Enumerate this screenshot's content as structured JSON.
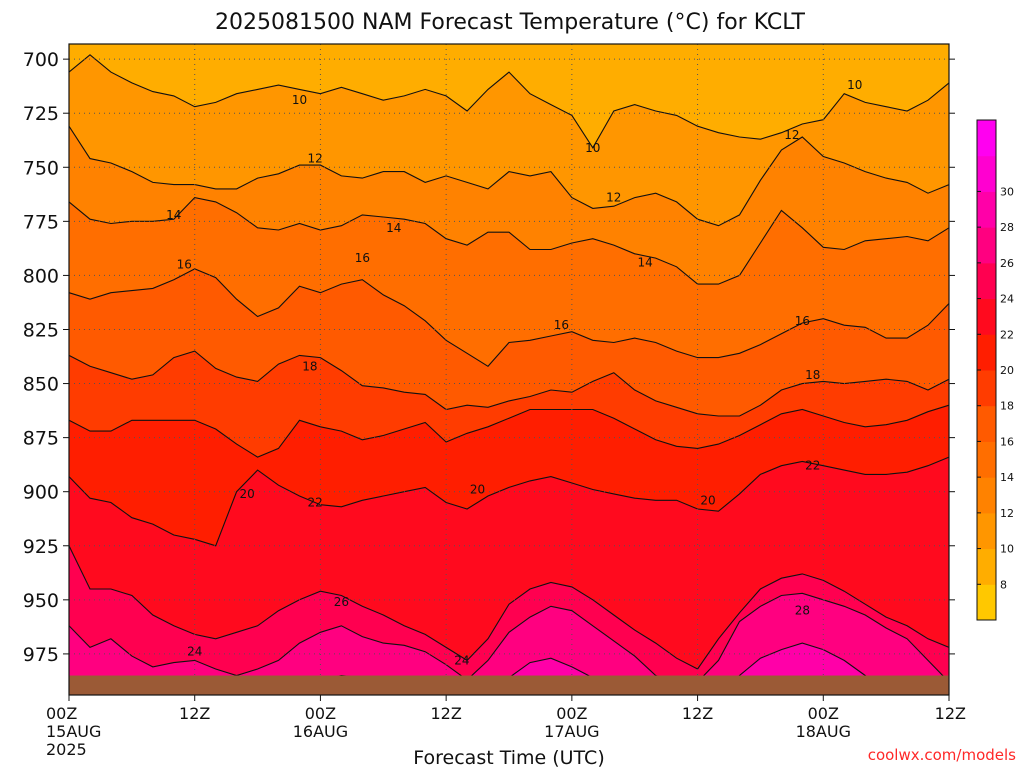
{
  "chart_data": {
    "type": "heatmap",
    "title": "2025081500 NAM Forecast Temperature (°C) for KCLT",
    "xlabel": "Forecast Time (UTC)",
    "ylabel": "",
    "credit": "coolwx.com/models",
    "x_ticks": [
      {
        "hour": 0,
        "label": "00Z",
        "sub": "15AUG",
        "sub2": "2025"
      },
      {
        "hour": 12,
        "label": "12Z"
      },
      {
        "hour": 24,
        "label": "00Z",
        "sub": "16AUG"
      },
      {
        "hour": 36,
        "label": "12Z"
      },
      {
        "hour": 48,
        "label": "00Z",
        "sub": "17AUG"
      },
      {
        "hour": 60,
        "label": "12Z"
      },
      {
        "hour": 72,
        "label": "00Z",
        "sub": "18AUG"
      },
      {
        "hour": 84,
        "label": "12Z"
      }
    ],
    "xlim": [
      0,
      84
    ],
    "y_ticks": [
      700,
      725,
      750,
      775,
      800,
      825,
      850,
      875,
      900,
      925,
      950,
      975
    ],
    "ylim": [
      994,
      693
    ],
    "surface_pressure_hPa": 985,
    "contour_levels": [
      10,
      12,
      14,
      16,
      18,
      20,
      22,
      24,
      26,
      28
    ],
    "contour_labels": [
      {
        "hour": 22,
        "p": 719,
        "label": "10"
      },
      {
        "hour": 50,
        "p": 741,
        "label": "10"
      },
      {
        "hour": 75,
        "p": 712,
        "label": "10"
      },
      {
        "hour": 23.5,
        "p": 746,
        "label": "12"
      },
      {
        "hour": 52,
        "p": 764,
        "label": "12"
      },
      {
        "hour": 69,
        "p": 735,
        "label": "12"
      },
      {
        "hour": 10,
        "p": 772,
        "label": "14"
      },
      {
        "hour": 31,
        "p": 778,
        "label": "14"
      },
      {
        "hour": 55,
        "p": 794,
        "label": "14"
      },
      {
        "hour": 11,
        "p": 795,
        "label": "16"
      },
      {
        "hour": 28,
        "p": 792,
        "label": "16"
      },
      {
        "hour": 47,
        "p": 823,
        "label": "16"
      },
      {
        "hour": 70,
        "p": 821,
        "label": "16"
      },
      {
        "hour": 23,
        "p": 842,
        "label": "18"
      },
      {
        "hour": 71,
        "p": 846,
        "label": "18"
      },
      {
        "hour": 17,
        "p": 901,
        "label": "20"
      },
      {
        "hour": 39,
        "p": 899,
        "label": "20"
      },
      {
        "hour": 61,
        "p": 904,
        "label": "20"
      },
      {
        "hour": 23.5,
        "p": 905,
        "label": "22"
      },
      {
        "hour": 71,
        "p": 888,
        "label": "22"
      },
      {
        "hour": 12,
        "p": 974,
        "label": "24"
      },
      {
        "hour": 37.5,
        "p": 978,
        "label": "24"
      },
      {
        "hour": 26,
        "p": 951,
        "label": "26"
      },
      {
        "hour": 70,
        "p": 955,
        "label": "28"
      }
    ],
    "colorbar": {
      "labels": [
        8,
        10,
        12,
        14,
        16,
        18,
        20,
        22,
        24,
        26,
        28,
        30
      ],
      "colors": [
        "#ffc800",
        "#ffad00",
        "#ff9600",
        "#ff8200",
        "#ff6e00",
        "#ff5a00",
        "#ff3c00",
        "#ff1e00",
        "#ff0a1e",
        "#ff0050",
        "#ff0080",
        "#ff00a8",
        "#ff00d0",
        "#ff00f0"
      ]
    },
    "colors": {
      "ground": "#9b5a36",
      "contour": "#111111",
      "grid": "#555555",
      "credit": "#ff2828"
    },
    "series": [
      {
        "hour": 0,
        "isotherms": [
          706,
          731,
          766,
          808,
          837,
          867,
          893,
          925,
          962,
          1000
        ]
      },
      {
        "hour": 2,
        "isotherms": [
          698,
          746,
          774,
          811,
          842,
          872,
          903,
          945,
          972,
          1000
        ]
      },
      {
        "hour": 4,
        "isotherms": [
          706,
          748,
          776,
          808,
          845,
          872,
          905,
          945,
          968,
          1000
        ]
      },
      {
        "hour": 6,
        "isotherms": [
          711,
          752,
          775,
          807,
          848,
          867,
          912,
          948,
          976,
          1000
        ]
      },
      {
        "hour": 8,
        "isotherms": [
          715,
          757,
          775,
          806,
          846,
          867,
          915,
          957,
          981,
          1000
        ]
      },
      {
        "hour": 10,
        "isotherms": [
          717,
          758,
          774,
          802,
          838,
          867,
          920,
          962,
          979,
          1000
        ]
      },
      {
        "hour": 12,
        "isotherms": [
          722,
          758,
          764,
          797,
          835,
          867,
          922,
          966,
          978,
          1000
        ]
      },
      {
        "hour": 14,
        "isotherms": [
          720,
          760,
          766,
          801,
          843,
          871,
          925,
          968,
          982,
          1000
        ]
      },
      {
        "hour": 16,
        "isotherms": [
          716,
          760,
          771,
          811,
          847,
          878,
          900,
          965,
          985,
          1000
        ]
      },
      {
        "hour": 18,
        "isotherms": [
          714,
          755,
          778,
          819,
          849,
          884,
          890,
          962,
          982,
          995
        ]
      },
      {
        "hour": 20,
        "isotherms": [
          712,
          753,
          779,
          815,
          841,
          880,
          897,
          955,
          978,
          993
        ]
      },
      {
        "hour": 22,
        "isotherms": [
          714,
          749,
          776,
          805,
          837,
          867,
          902,
          950,
          970,
          990
        ]
      },
      {
        "hour": 24,
        "isotherms": [
          716,
          749,
          779,
          808,
          838,
          870,
          906,
          946,
          965,
          987
        ]
      },
      {
        "hour": 26,
        "isotherms": [
          713,
          754,
          777,
          804,
          844,
          872,
          907,
          948,
          962,
          985
        ]
      },
      {
        "hour": 28,
        "isotherms": [
          716,
          755,
          772,
          802,
          851,
          876,
          904,
          953,
          967,
          986
        ]
      },
      {
        "hour": 30,
        "isotherms": [
          719,
          752,
          773,
          809,
          852,
          874,
          902,
          957,
          970,
          988
        ]
      },
      {
        "hour": 32,
        "isotherms": [
          717,
          752,
          774,
          814,
          854,
          871,
          900,
          962,
          971,
          989
        ]
      },
      {
        "hour": 34,
        "isotherms": [
          714,
          757,
          776,
          821,
          855,
          868,
          898,
          966,
          974,
          992
        ]
      },
      {
        "hour": 36,
        "isotherms": [
          717,
          754,
          783,
          830,
          862,
          877,
          905,
          972,
          980,
          996
        ]
      },
      {
        "hour": 38,
        "isotherms": [
          724,
          757,
          786,
          836,
          860,
          873,
          908,
          978,
          987,
          1000
        ]
      },
      {
        "hour": 40,
        "isotherms": [
          714,
          760,
          780,
          842,
          861,
          870,
          902,
          968,
          978,
          1000
        ]
      },
      {
        "hour": 42,
        "isotherms": [
          706,
          752,
          780,
          831,
          858,
          866,
          898,
          952,
          965,
          986
        ]
      },
      {
        "hour": 44,
        "isotherms": [
          716,
          754,
          788,
          830,
          856,
          862,
          895,
          945,
          958,
          979
        ]
      },
      {
        "hour": 46,
        "isotherms": [
          721,
          752,
          788,
          828,
          853,
          862,
          893,
          942,
          953,
          977
        ]
      },
      {
        "hour": 48,
        "isotherms": [
          726,
          764,
          785,
          826,
          854,
          862,
          896,
          944,
          955,
          981
        ]
      },
      {
        "hour": 50,
        "isotherms": [
          741,
          769,
          783,
          830,
          849,
          862,
          899,
          950,
          962,
          986
        ]
      },
      {
        "hour": 52,
        "isotherms": [
          724,
          768,
          786,
          831,
          845,
          866,
          901,
          957,
          969,
          990
        ]
      },
      {
        "hour": 54,
        "isotherms": [
          721,
          764,
          790,
          829,
          853,
          871,
          903,
          964,
          976,
          995
        ]
      },
      {
        "hour": 56,
        "isotherms": [
          724,
          762,
          792,
          831,
          858,
          876,
          904,
          970,
          985,
          1000
        ]
      },
      {
        "hour": 58,
        "isotherms": [
          726,
          766,
          796,
          835,
          861,
          879,
          904,
          977,
          988,
          1000
        ]
      },
      {
        "hour": 60,
        "isotherms": [
          731,
          774,
          804,
          838,
          864,
          880,
          908,
          982,
          988,
          1000
        ]
      },
      {
        "hour": 62,
        "isotherms": [
          734,
          777,
          804,
          838,
          865,
          878,
          909,
          968,
          978,
          1000
        ]
      },
      {
        "hour": 64,
        "isotherms": [
          736,
          772,
          800,
          836,
          865,
          874,
          901,
          956,
          960,
          985
        ]
      },
      {
        "hour": 66,
        "isotherms": [
          737,
          756,
          785,
          832,
          860,
          869,
          892,
          945,
          953,
          977
        ]
      },
      {
        "hour": 68,
        "isotherms": [
          734,
          742,
          770,
          827,
          853,
          864,
          888,
          940,
          948,
          973
        ]
      },
      {
        "hour": 70,
        "isotherms": [
          730,
          736,
          778,
          822,
          850,
          862,
          886,
          938,
          947,
          970
        ]
      },
      {
        "hour": 72,
        "isotherms": [
          728,
          745,
          787,
          820,
          849,
          865,
          888,
          941,
          950,
          973
        ]
      },
      {
        "hour": 74,
        "isotherms": [
          716,
          748,
          788,
          823,
          850,
          868,
          890,
          946,
          953,
          978
        ]
      },
      {
        "hour": 76,
        "isotherms": [
          720,
          752,
          784,
          824,
          849,
          870,
          892,
          952,
          957,
          985
        ]
      },
      {
        "hour": 78,
        "isotherms": [
          722,
          755,
          783,
          829,
          848,
          869,
          892,
          958,
          963,
          992
        ]
      },
      {
        "hour": 80,
        "isotherms": [
          724,
          757,
          782,
          829,
          849,
          867,
          891,
          962,
          968,
          996
        ]
      },
      {
        "hour": 82,
        "isotherms": [
          719,
          762,
          784,
          823,
          853,
          863,
          888,
          968,
          978,
          1000
        ]
      },
      {
        "hour": 84,
        "isotherms": [
          711,
          758,
          778,
          813,
          848,
          860,
          884,
          972,
          988,
          1000
        ]
      }
    ]
  }
}
